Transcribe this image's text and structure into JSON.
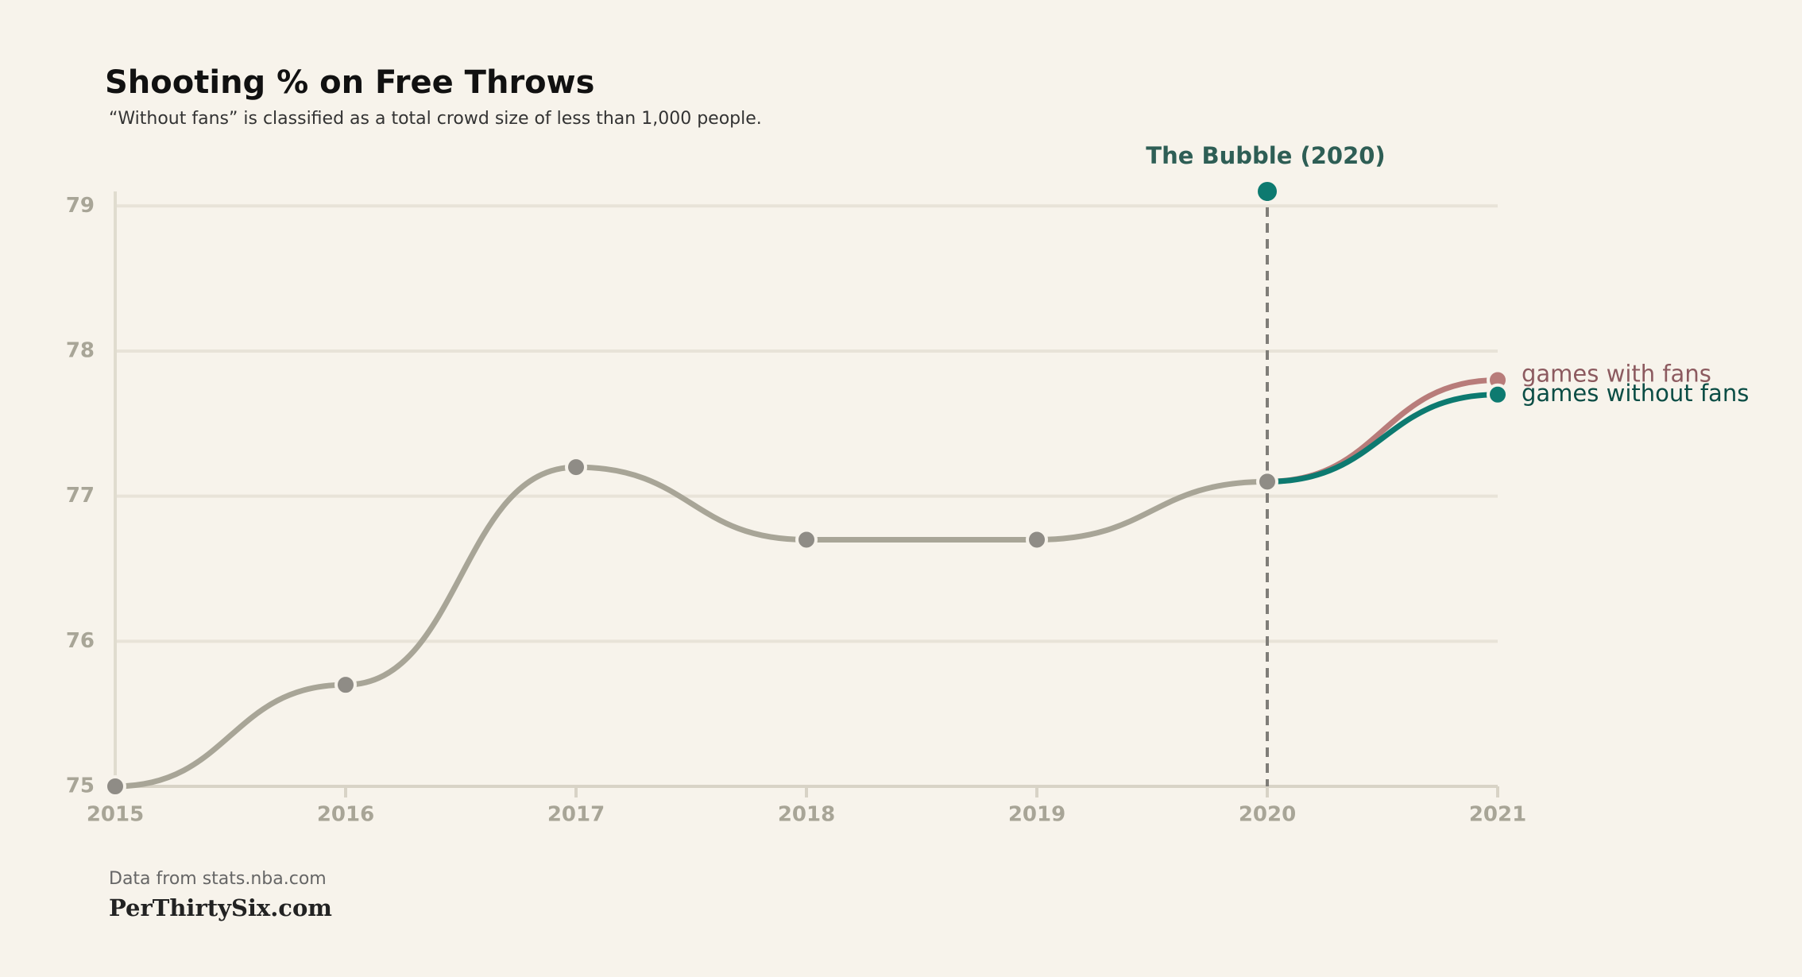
{
  "chart_data": {
    "type": "line",
    "title": "Shooting % on Free Throws",
    "subtitle": "“Without fans” is classified as a total crowd size of less than 1,000 people.",
    "x": [
      2015,
      2016,
      2017,
      2018,
      2019,
      2020,
      2021
    ],
    "series": [
      {
        "color": "#a8a597",
        "marker_color": "#8f8c86",
        "values": [
          75.0,
          75.7,
          77.2,
          76.7,
          76.7,
          77.1,
          null
        ]
      },
      {
        "name": "games with fans",
        "color": "#b87c7a",
        "label_color": "#8c5a5f",
        "values": [
          null,
          null,
          null,
          null,
          null,
          77.1,
          77.8
        ]
      },
      {
        "name": "games without fans",
        "color": "#0d7a70",
        "label_color": "#0b4d45",
        "values": [
          null,
          null,
          null,
          null,
          null,
          77.1,
          77.7
        ]
      }
    ],
    "annotation": {
      "text": "The Bubble (2020)",
      "x": 2020,
      "y": 79.1,
      "color": "#0d7a70",
      "text_color": "#2e5e55"
    },
    "xlim": [
      2015,
      2021
    ],
    "xticks": [
      2015,
      2016,
      2017,
      2018,
      2019,
      2020,
      2021
    ],
    "ylim": [
      75,
      79.1
    ],
    "yticks": [
      75,
      76,
      77,
      78,
      79
    ],
    "grid": true,
    "source": "Data from stats.nba.com",
    "brand": "PerThirtySix.com"
  }
}
